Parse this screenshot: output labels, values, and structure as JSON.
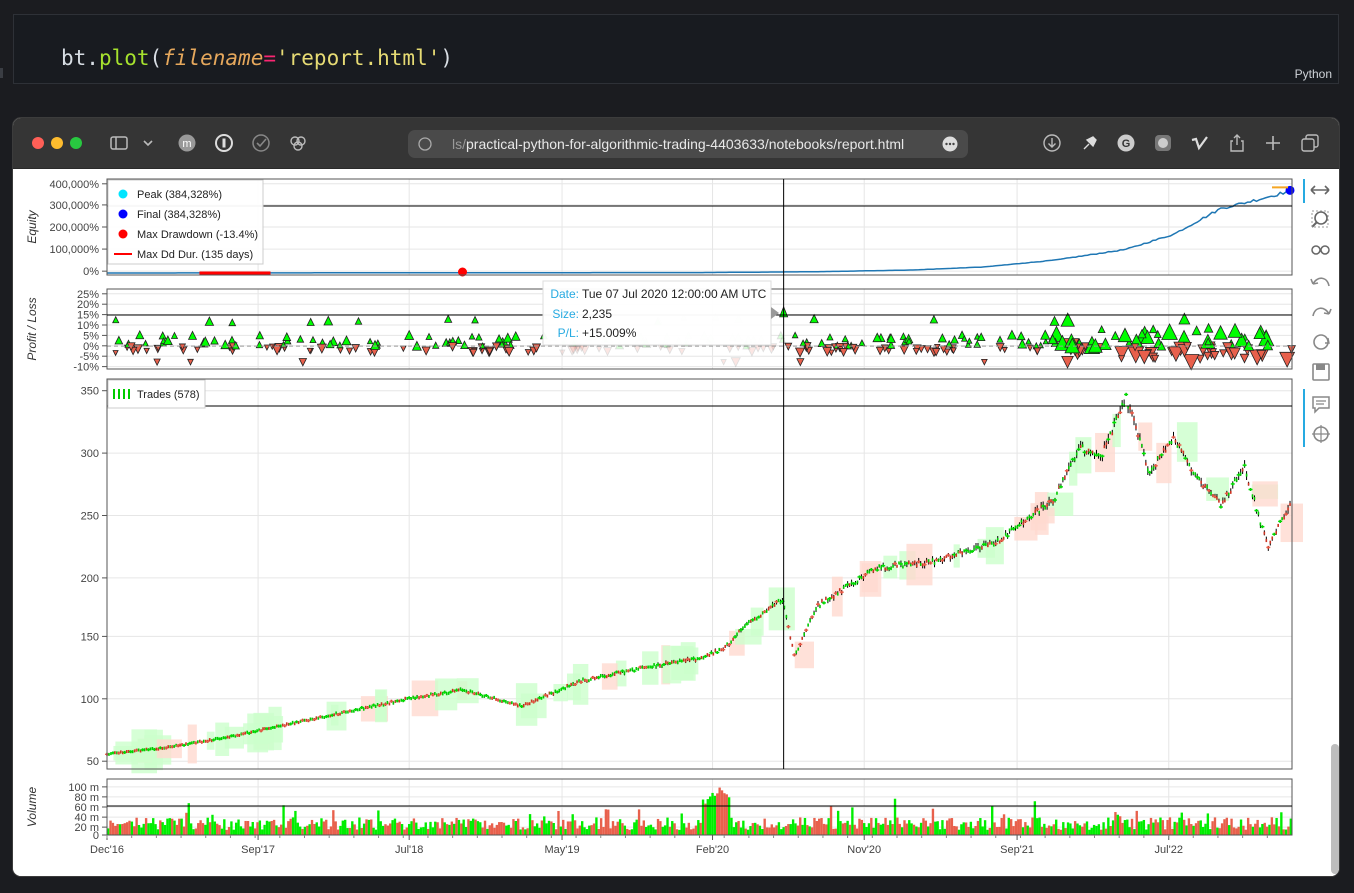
{
  "code_cell": {
    "code": {
      "obj": "bt",
      "dot": ".",
      "method": "plot",
      "open": "(",
      "kwarg": "filename",
      "eq": "=",
      "str": "'report.html'",
      "close": ")"
    },
    "language": "Python"
  },
  "browser": {
    "url_faded": "ls/",
    "url": "practical-python-for-algorithmic-trading-4403633/notebooks/report.html",
    "icons": [
      "sidebar-icon",
      "chevron-down-icon",
      "extension-m-icon",
      "extension-privacy-icon",
      "check-icon",
      "extension-3d-icon",
      "compass-icon",
      "more-icon",
      "download-icon",
      "pin-icon",
      "grammar-icon",
      "extension-icon",
      "vimeo-icon",
      "share-icon",
      "new-tab-icon",
      "tabs-overview-icon"
    ]
  },
  "plot": {
    "tools": [
      "pan-icon",
      "zoom-icon",
      "box-select-icon",
      "undo-icon",
      "redo-icon",
      "reset-icon",
      "save-icon",
      "hover-icon",
      "crosshair-icon"
    ],
    "x_ticks": [
      "Dec'16",
      "Sep'17",
      "Jul'18",
      "May'19",
      "Feb'20",
      "Nov'20",
      "Sep'21",
      "Jul'22"
    ],
    "equity": {
      "ylabel": "Equity",
      "y_ticks": [
        "400,000%",
        "300,000%",
        "200,000%",
        "100,000%",
        "0%"
      ],
      "legend": [
        {
          "label": "Peak (384,328%)",
          "color": "#00e5ff",
          "shape": "dot"
        },
        {
          "label": "Final (384,328%)",
          "color": "#0000ff",
          "shape": "dot"
        },
        {
          "label": "Max Drawdown (-13.4%)",
          "color": "#ff0000",
          "shape": "dot"
        },
        {
          "label": "Max Dd Dur. (135 days)",
          "color": "#ff0000",
          "shape": "line"
        }
      ]
    },
    "pl": {
      "ylabel": "Profit / Loss",
      "y_ticks": [
        "25%",
        "20%",
        "15%",
        "10%",
        "5%",
        "0%",
        "-5%",
        "-10%"
      ]
    },
    "price": {
      "y_ticks": [
        "350",
        "300",
        "250",
        "200",
        "150",
        "100",
        "50"
      ],
      "legend": "Trades (578)"
    },
    "volume": {
      "ylabel": "Volume",
      "y_ticks": [
        "100 m",
        "80 m",
        "60 m",
        "40 m",
        "20 m",
        "0"
      ]
    },
    "tooltip": {
      "date_label": "Date:",
      "date_value": "Tue 07 Jul 2020 12:00:00 AM UTC",
      "size_label": "Size:",
      "size_value": "2,235",
      "pl_label": "P/L:",
      "pl_value": "+15.009%"
    },
    "colors": {
      "equity_line": "#1f77b4",
      "up": "#00ff00",
      "down": "#e8604c",
      "candle": "#000000"
    }
  },
  "chart_data": {
    "type": "line",
    "x_range": [
      "Dec'16",
      "Dec'22"
    ],
    "x_ticks": [
      "Dec'16",
      "Sep'17",
      "Jul'18",
      "May'19",
      "Feb'20",
      "Nov'20",
      "Sep'21",
      "Jul'22"
    ],
    "equity_series": {
      "name": "Equity",
      "x": [
        0,
        0.5,
        0.6,
        0.68,
        0.74,
        0.8,
        0.86,
        0.9,
        0.94,
        0.97,
        1.0
      ],
      "values": [
        0,
        2000,
        6000,
        14000,
        28000,
        60000,
        110000,
        180000,
        300000,
        340000,
        384328
      ],
      "ylim": [
        0,
        400000
      ]
    },
    "price_series": {
      "name": "Price",
      "x": [
        0,
        0.05,
        0.1,
        0.15,
        0.2,
        0.25,
        0.3,
        0.35,
        0.4,
        0.45,
        0.5,
        0.52,
        0.54,
        0.57,
        0.58,
        0.6,
        0.65,
        0.7,
        0.75,
        0.8,
        0.82,
        0.84,
        0.86,
        0.88,
        0.9,
        0.92,
        0.94,
        0.96,
        0.98,
        1.0
      ],
      "values": [
        57,
        62,
        70,
        80,
        90,
        100,
        108,
        95,
        115,
        125,
        133,
        140,
        160,
        180,
        135,
        175,
        205,
        210,
        225,
        260,
        300,
        295,
        340,
        280,
        310,
        275,
        255,
        285,
        220,
        260
      ],
      "ylim": [
        45,
        355
      ]
    }
  }
}
